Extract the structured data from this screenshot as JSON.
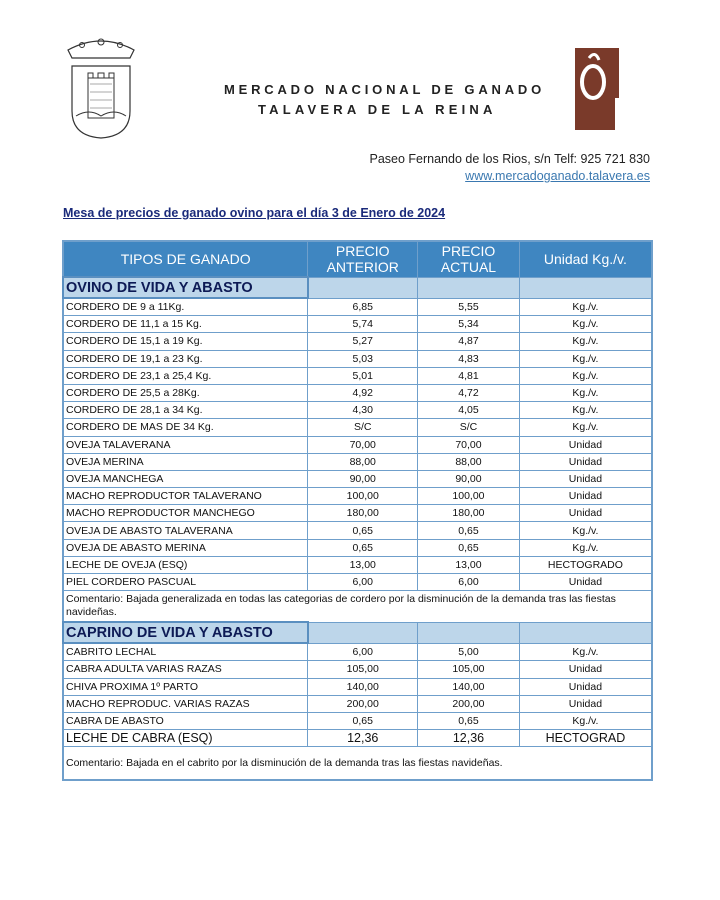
{
  "header": {
    "title_line1": "MERCADO NACIONAL DE GANADO",
    "title_line2": "TALAVERA DE LA REINA",
    "address": "Paseo Fernando de los Rios, s/n  Telf: 925 721 830",
    "website": "www.mercadoganado.talavera.es"
  },
  "document_title": "Mesa de precios de ganado ovino para el día 3 de Enero de 2024",
  "colors": {
    "header_bg": "#3f86c1",
    "section_bg": "#bdd6ea",
    "logo_brown": "#7a3a2a"
  },
  "table": {
    "headers": [
      "TIPOS DE GANADO",
      "PRECIO ANTERIOR",
      "PRECIO ACTUAL",
      "Unidad Kg./v."
    ],
    "sections": [
      {
        "title": "OVINO DE VIDA Y ABASTO",
        "rows": [
          [
            "CORDERO DE 9 a 11Kg.",
            "6,85",
            "5,55",
            "Kg./v."
          ],
          [
            "CORDERO DE 11,1 a 15 Kg.",
            "5,74",
            "5,34",
            "Kg./v."
          ],
          [
            "CORDERO DE 15,1 a 19 Kg.",
            "5,27",
            "4,87",
            "Kg./v."
          ],
          [
            "CORDERO DE 19,1 a 23 Kg.",
            "5,03",
            "4,83",
            "Kg./v."
          ],
          [
            "CORDERO DE 23,1 a 25,4 Kg.",
            "5,01",
            "4,81",
            "Kg./v."
          ],
          [
            "CORDERO DE 25,5 a 28Kg.",
            "4,92",
            "4,72",
            "Kg./v."
          ],
          [
            "CORDERO DE 28,1 a 34 Kg.",
            "4,30",
            "4,05",
            "Kg./v."
          ],
          [
            "CORDERO DE MAS DE 34 Kg.",
            "S/C",
            "S/C",
            "Kg./v."
          ],
          [
            "OVEJA TALAVERANA",
            "70,00",
            "70,00",
            "Unidad"
          ],
          [
            "OVEJA MERINA",
            "88,00",
            "88,00",
            "Unidad"
          ],
          [
            "OVEJA MANCHEGA",
            "90,00",
            "90,00",
            "Unidad"
          ],
          [
            "MACHO REPRODUCTOR TALAVERANO",
            "100,00",
            "100,00",
            "Unidad"
          ],
          [
            "MACHO REPRODUCTOR MANCHEGO",
            "180,00",
            "180,00",
            "Unidad"
          ],
          [
            "OVEJA DE ABASTO TALAVERANA",
            "0,65",
            "0,65",
            "Kg./v."
          ],
          [
            "OVEJA DE ABASTO MERINA",
            "0,65",
            "0,65",
            "Kg./v."
          ],
          [
            "LECHE DE OVEJA (ESQ)",
            "13,00",
            "13,00",
            "HECTOGRADO"
          ],
          [
            "PIEL CORDERO PASCUAL",
            "6,00",
            "6,00",
            "Unidad"
          ]
        ],
        "comment": "Comentario: Bajada generalizada en todas las categorias de cordero por la disminución de la demanda tras las fiestas navideñas."
      },
      {
        "title": "CAPRINO DE VIDA Y ABASTO",
        "rows": [
          [
            "CABRITO LECHAL",
            "6,00",
            "5,00",
            "Kg./v."
          ],
          [
            "CABRA ADULTA VARIAS RAZAS",
            "105,00",
            "105,00",
            "Unidad"
          ],
          [
            "CHIVA PROXIMA 1º PARTO",
            "140,00",
            "140,00",
            "Unidad"
          ],
          [
            "MACHO REPRODUC. VARIAS RAZAS",
            "200,00",
            "200,00",
            "Unidad"
          ],
          [
            "CABRA DE ABASTO",
            "0,65",
            "0,65",
            "Kg./v."
          ],
          [
            "LECHE DE CABRA (ESQ)",
            "12,36",
            "12,36",
            "HECTOGRAD"
          ]
        ],
        "comment": "Comentario: Bajada en el cabrito por la disminución de la demanda tras las fiestas navideñas."
      }
    ]
  }
}
